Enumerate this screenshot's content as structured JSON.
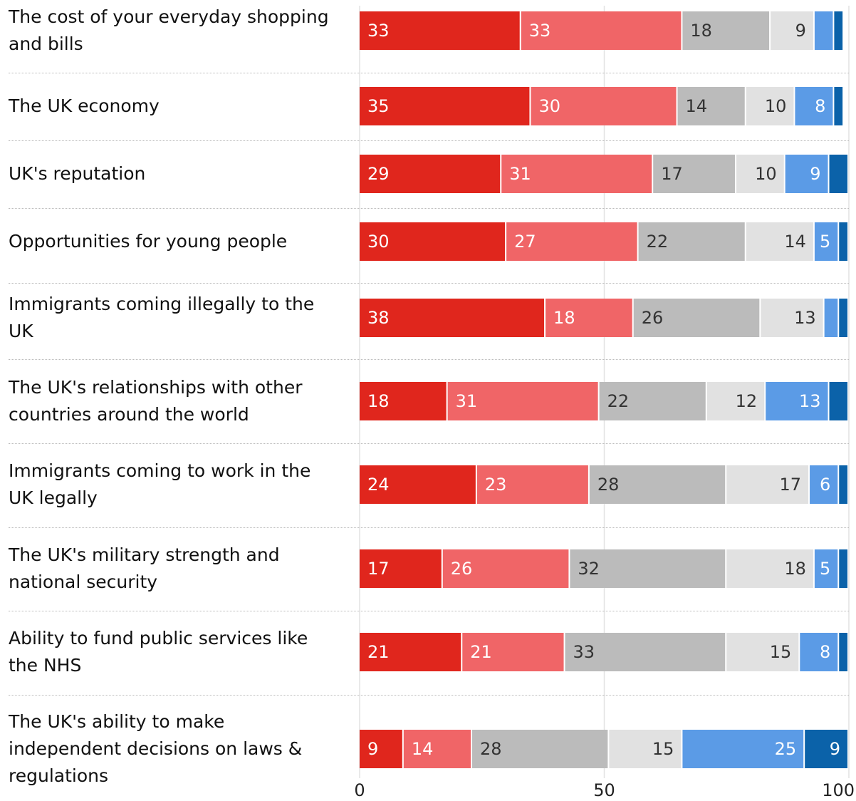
{
  "chart_data": {
    "type": "stacked-bar-horizontal",
    "categories": [
      "The cost of your everyday shopping and bills",
      "The UK economy",
      "UK's reputation",
      "Opportunities for young people",
      "Immigrants coming illegally to the UK",
      "The UK's relationships with other countries around the world",
      "Immigrants coming to work in the UK legally",
      "The UK's military strength and national security",
      "Ability to fund public services like the NHS",
      "The UK's ability to make independent decisions on laws & regulations"
    ],
    "series": [
      {
        "color": "#e0261d",
        "values": [
          33,
          35,
          29,
          30,
          38,
          18,
          24,
          17,
          21,
          9
        ]
      },
      {
        "color": "#f06567",
        "values": [
          33,
          30,
          31,
          27,
          18,
          31,
          23,
          26,
          21,
          14
        ]
      },
      {
        "color": "#bbbbbb",
        "values": [
          18,
          14,
          17,
          22,
          26,
          22,
          28,
          32,
          33,
          28
        ]
      },
      {
        "color": "#e1e1e1",
        "values": [
          9,
          10,
          10,
          14,
          13,
          12,
          17,
          18,
          15,
          15
        ]
      },
      {
        "color": "#5b9be6",
        "values": [
          4,
          8,
          9,
          5,
          3,
          13,
          6,
          5,
          8,
          25
        ]
      },
      {
        "color": "#0b62a9",
        "values": [
          2,
          2,
          4,
          2,
          2,
          4,
          2,
          2,
          2,
          9
        ]
      }
    ],
    "xlim": [
      0,
      100
    ],
    "xticks": [
      0,
      50,
      100
    ],
    "grid": true
  }
}
